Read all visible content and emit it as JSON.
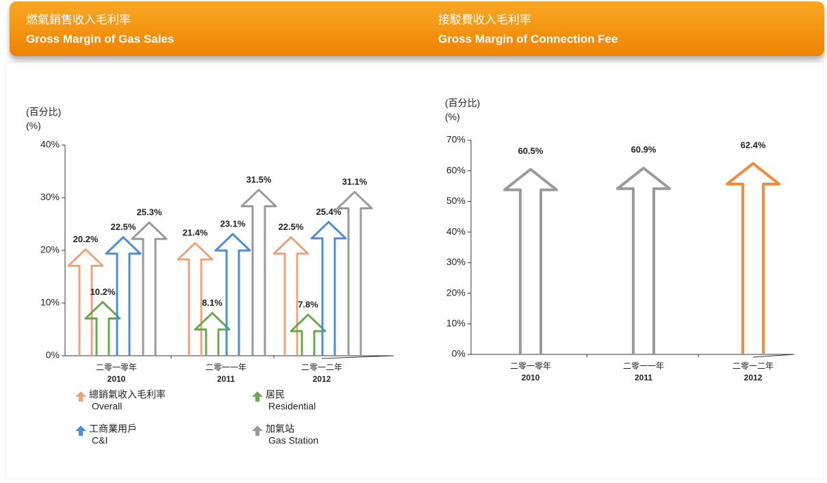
{
  "chart_data": [
    {
      "type": "arrow-bar",
      "title_zh": "燃氣銷售收入毛利率",
      "title": "Gross Margin of Gas Sales",
      "ylabel_zh": "(百分比)",
      "ylabel": "(%)",
      "categories_zh": [
        "二零一零年",
        "二零一一年",
        "二零一二年"
      ],
      "categories": [
        "2010",
        "2011",
        "2012"
      ],
      "ylim": [
        0,
        40
      ],
      "yticks": [
        {
          "value": 0,
          "label": "0%"
        },
        {
          "value": 10,
          "label": "10%"
        },
        {
          "value": 20,
          "label": "20%"
        },
        {
          "value": 30,
          "label": "30%"
        },
        {
          "value": 40,
          "label": "40%"
        }
      ],
      "series": [
        {
          "name_zh": "總銷氣收入毛利率",
          "name": "Overall",
          "color": "#f0a27a",
          "values": [
            20.2,
            21.4,
            22.5
          ],
          "value_labels": [
            "20.2%",
            "21.4%",
            "22.5%"
          ]
        },
        {
          "name_zh": "居民",
          "name": "Residential",
          "color": "#6aa84f",
          "values": [
            10.2,
            8.1,
            7.8
          ],
          "value_labels": [
            "10.2%",
            "8.1%",
            "7.8%"
          ]
        },
        {
          "name_zh": "工商業用戶",
          "name": "C&I",
          "color": "#4a8fd6",
          "values": [
            22.5,
            23.1,
            25.4
          ],
          "value_labels": [
            "22.5%",
            "23.1%",
            "25.4%"
          ]
        },
        {
          "name_zh": "加氣站",
          "name": "Gas Station",
          "color": "#9a9a9a",
          "values": [
            25.3,
            31.5,
            31.1
          ],
          "value_labels": [
            "25.3%",
            "31.5%",
            "31.1%"
          ]
        }
      ]
    },
    {
      "type": "arrow-bar",
      "title_zh": "接駁費收入毛利率",
      "title": "Gross Margin of Connection Fee",
      "ylabel_zh": "(百分比)",
      "ylabel": "(%)",
      "categories_zh": [
        "二零一零年",
        "二零一一年",
        "二零一二年"
      ],
      "categories": [
        "2010",
        "2011",
        "2012"
      ],
      "ylim": [
        0,
        70
      ],
      "yticks": [
        {
          "value": 0,
          "label": "0%"
        },
        {
          "value": 10,
          "label": "10%"
        },
        {
          "value": 20,
          "label": "20%"
        },
        {
          "value": 30,
          "label": "30%"
        },
        {
          "value": 40,
          "label": "40%"
        },
        {
          "value": 50,
          "label": "50%"
        },
        {
          "value": 60,
          "label": "60%"
        },
        {
          "value": 70,
          "label": "70%"
        }
      ],
      "values": [
        60.5,
        60.9,
        62.4
      ],
      "value_labels": [
        "60.5%",
        "60.9%",
        "62.4%"
      ],
      "colors": [
        "#9a9a9a",
        "#9a9a9a",
        "#f08a3c"
      ]
    }
  ]
}
